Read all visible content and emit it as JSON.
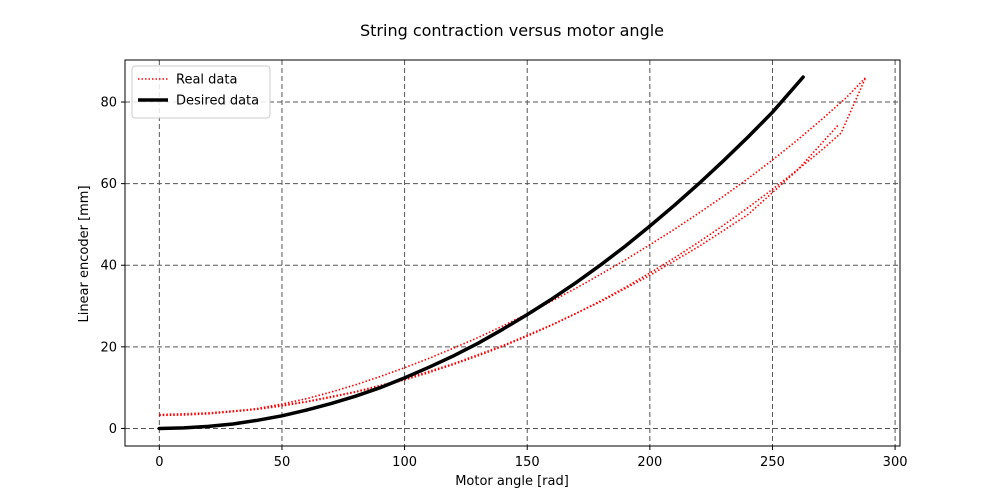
{
  "chart_data": {
    "type": "line",
    "title": "String contraction versus motor angle",
    "xlabel": "Motor angle [rad]",
    "ylabel": "Linear encoder [mm]",
    "xlim": [
      -14,
      302
    ],
    "ylim": [
      -4.3,
      90.3
    ],
    "xticks": [
      0,
      50,
      100,
      150,
      200,
      250,
      300
    ],
    "yticks": [
      0,
      20,
      40,
      60,
      80
    ],
    "grid": true,
    "grid_style": "dashed",
    "legend_position": "top-left",
    "series": [
      {
        "name": "Desired data",
        "color": "#000000",
        "style": "solid",
        "x": [
          0,
          10,
          20,
          30,
          40,
          50,
          60,
          70,
          80,
          90,
          100,
          110,
          120,
          130,
          140,
          150,
          160,
          170,
          180,
          190,
          200,
          210,
          220,
          230,
          240,
          250,
          262.5
        ],
        "y": [
          0,
          0.13,
          0.5,
          1.1,
          2.0,
          3.1,
          4.5,
          6.1,
          7.9,
          10.0,
          12.4,
          15.0,
          17.8,
          20.9,
          24.3,
          27.9,
          31.7,
          35.8,
          40.1,
          44.7,
          49.6,
          54.7,
          60.0,
          65.6,
          71.4,
          77.5,
          86.1
        ]
      },
      {
        "name": "Real data",
        "color": "#ff0000",
        "style": "dotted",
        "x": [
          0,
          10,
          20,
          30,
          40,
          50,
          60,
          70,
          80,
          90,
          100,
          110,
          120,
          130,
          140,
          150,
          160,
          170,
          180,
          190,
          200,
          210,
          220,
          230,
          240,
          250,
          260,
          270,
          278,
          288,
          280,
          270,
          260,
          250,
          240,
          230,
          220,
          210,
          200,
          190,
          180,
          170,
          160,
          150,
          140,
          130,
          120,
          110,
          100,
          90,
          80,
          70,
          60,
          50,
          40,
          30,
          20,
          10,
          0
        ],
        "y": [
          3.2,
          3.3,
          3.6,
          4.1,
          4.7,
          5.5,
          6.5,
          7.6,
          8.9,
          10.3,
          11.9,
          13.7,
          15.7,
          17.8,
          20.1,
          22.6,
          25.3,
          28.2,
          31.3,
          34.6,
          38.1,
          41.8,
          45.7,
          49.8,
          54.1,
          58.6,
          63.3,
          68.2,
          72.4,
          86.0,
          81.0,
          75.7,
          70.6,
          65.8,
          61.2,
          56.9,
          52.8,
          48.8,
          45.0,
          41.3,
          37.8,
          34.4,
          31.2,
          28.1,
          25.1,
          22.3,
          19.7,
          17.2,
          14.9,
          12.7,
          10.7,
          8.9,
          7.3,
          6.0,
          4.9,
          4.1,
          3.6,
          3.3,
          3.2
        ]
      },
      {
        "name": "",
        "color": "#ff0000",
        "style": "dotted",
        "x": [
          0,
          20,
          40,
          60,
          80,
          100,
          120,
          140,
          160,
          180,
          200,
          220,
          240,
          260,
          277
        ],
        "y": [
          3.4,
          3.8,
          4.8,
          6.6,
          9.0,
          12.1,
          15.9,
          20.3,
          25.4,
          31.1,
          37.5,
          44.6,
          52.4,
          63.2,
          74.5
        ]
      }
    ]
  }
}
